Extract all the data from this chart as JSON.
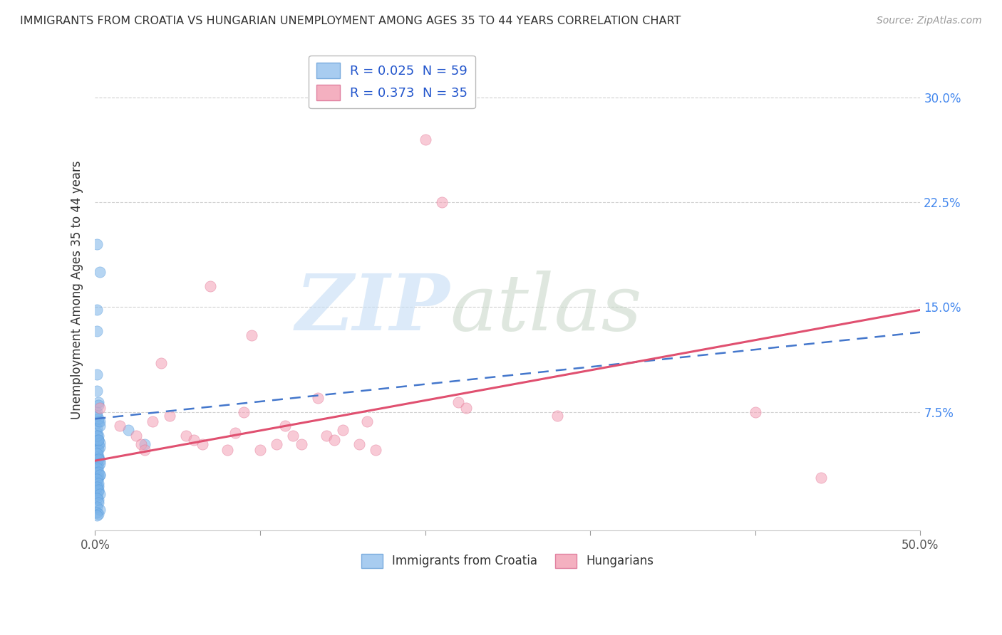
{
  "title": "IMMIGRANTS FROM CROATIA VS HUNGARIAN UNEMPLOYMENT AMONG AGES 35 TO 44 YEARS CORRELATION CHART",
  "source": "Source: ZipAtlas.com",
  "ylabel": "Unemployment Among Ages 35 to 44 years",
  "xlim": [
    0.0,
    0.5
  ],
  "ylim": [
    -0.01,
    0.335
  ],
  "xticks": [
    0.0,
    0.1,
    0.2,
    0.3,
    0.4,
    0.5
  ],
  "yticks": [
    0.075,
    0.15,
    0.225,
    0.3
  ],
  "ytick_labels": [
    "7.5%",
    "15.0%",
    "22.5%",
    "30.0%"
  ],
  "xtick_labels": [
    "0.0%",
    "",
    "",
    "",
    "",
    "50.0%"
  ],
  "blue_scatter": [
    [
      0.001,
      0.195
    ],
    [
      0.003,
      0.175
    ],
    [
      0.001,
      0.148
    ],
    [
      0.001,
      0.133
    ],
    [
      0.001,
      0.102
    ],
    [
      0.002,
      0.082
    ],
    [
      0.001,
      0.072
    ],
    [
      0.002,
      0.068
    ],
    [
      0.001,
      0.063
    ],
    [
      0.002,
      0.058
    ],
    [
      0.001,
      0.055
    ],
    [
      0.002,
      0.052
    ],
    [
      0.003,
      0.05
    ],
    [
      0.001,
      0.047
    ],
    [
      0.002,
      0.043
    ],
    [
      0.002,
      0.042
    ],
    [
      0.003,
      0.04
    ],
    [
      0.001,
      0.038
    ],
    [
      0.002,
      0.036
    ],
    [
      0.001,
      0.032
    ],
    [
      0.003,
      0.03
    ],
    [
      0.002,
      0.028
    ],
    [
      0.001,
      0.025
    ],
    [
      0.002,
      0.022
    ],
    [
      0.001,
      0.02
    ],
    [
      0.002,
      0.018
    ],
    [
      0.001,
      0.015
    ],
    [
      0.002,
      0.012
    ],
    [
      0.001,
      0.06
    ],
    [
      0.002,
      0.055
    ],
    [
      0.003,
      0.053
    ],
    [
      0.002,
      0.048
    ],
    [
      0.001,
      0.045
    ],
    [
      0.002,
      0.041
    ],
    [
      0.003,
      0.038
    ],
    [
      0.001,
      0.035
    ],
    [
      0.002,
      0.032
    ],
    [
      0.003,
      0.03
    ],
    [
      0.001,
      0.027
    ],
    [
      0.002,
      0.024
    ],
    [
      0.001,
      0.021
    ],
    [
      0.002,
      0.019
    ],
    [
      0.003,
      0.016
    ],
    [
      0.001,
      0.013
    ],
    [
      0.002,
      0.01
    ],
    [
      0.001,
      0.007
    ],
    [
      0.003,
      0.005
    ],
    [
      0.001,
      0.003
    ],
    [
      0.002,
      0.002
    ],
    [
      0.001,
      0.001
    ],
    [
      0.003,
      0.065
    ],
    [
      0.002,
      0.07
    ],
    [
      0.02,
      0.062
    ],
    [
      0.03,
      0.052
    ],
    [
      0.001,
      0.058
    ],
    [
      0.002,
      0.055
    ],
    [
      0.003,
      0.068
    ],
    [
      0.001,
      0.075
    ],
    [
      0.002,
      0.08
    ],
    [
      0.001,
      0.09
    ]
  ],
  "pink_scatter": [
    [
      0.003,
      0.078
    ],
    [
      0.015,
      0.065
    ],
    [
      0.025,
      0.058
    ],
    [
      0.028,
      0.052
    ],
    [
      0.03,
      0.048
    ],
    [
      0.035,
      0.068
    ],
    [
      0.04,
      0.11
    ],
    [
      0.045,
      0.072
    ],
    [
      0.055,
      0.058
    ],
    [
      0.06,
      0.055
    ],
    [
      0.065,
      0.052
    ],
    [
      0.07,
      0.165
    ],
    [
      0.08,
      0.048
    ],
    [
      0.085,
      0.06
    ],
    [
      0.09,
      0.075
    ],
    [
      0.095,
      0.13
    ],
    [
      0.1,
      0.048
    ],
    [
      0.11,
      0.052
    ],
    [
      0.115,
      0.065
    ],
    [
      0.12,
      0.058
    ],
    [
      0.125,
      0.052
    ],
    [
      0.135,
      0.085
    ],
    [
      0.14,
      0.058
    ],
    [
      0.145,
      0.055
    ],
    [
      0.15,
      0.062
    ],
    [
      0.16,
      0.052
    ],
    [
      0.165,
      0.068
    ],
    [
      0.17,
      0.048
    ],
    [
      0.2,
      0.27
    ],
    [
      0.21,
      0.225
    ],
    [
      0.22,
      0.082
    ],
    [
      0.225,
      0.078
    ],
    [
      0.28,
      0.072
    ],
    [
      0.4,
      0.075
    ],
    [
      0.44,
      0.028
    ]
  ],
  "blue_line": {
    "x": [
      0.0,
      0.5
    ],
    "y": [
      0.07,
      0.132
    ]
  },
  "pink_line": {
    "x": [
      0.0,
      0.5
    ],
    "y": [
      0.04,
      0.148
    ]
  },
  "background_color": "#ffffff",
  "grid_color": "#cccccc",
  "scatter_alpha": 0.55,
  "scatter_size": 120
}
